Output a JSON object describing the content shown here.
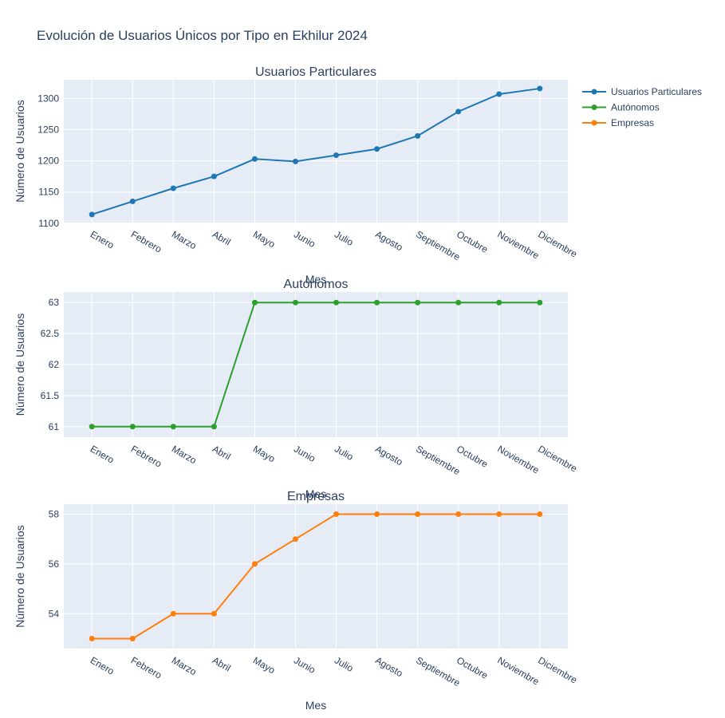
{
  "chart_data": {
    "type": "line",
    "title": "Evolución de Usuarios Únicos por Tipo en Ekhilur 2024",
    "categories": [
      "Enero",
      "Febrero",
      "Marzo",
      "Abril",
      "Mayo",
      "Junio",
      "Julio",
      "Agosto",
      "Septiembre",
      "Octubre",
      "Noviembre",
      "Diciembre"
    ],
    "legend": {
      "placement": "top-right",
      "entries": [
        "Usuarios Particulares",
        "Autónomos",
        "Empresas"
      ]
    },
    "subplots": [
      {
        "title": "Usuarios Particulares",
        "series_name": "Usuarios Particulares",
        "color": "#1f77b4",
        "values": [
          1114,
          1135,
          1156,
          1175,
          1203,
          1199,
          1209,
          1219,
          1240,
          1279,
          1307,
          1316
        ],
        "ylim": [
          1101,
          1330
        ],
        "yticks": [
          1100,
          1150,
          1200,
          1250,
          1300
        ],
        "ytick_labels": [
          "1100",
          "1150",
          "1200",
          "1250",
          "1300"
        ],
        "xlabel": "Mes",
        "ylabel": "Número de Usuarios"
      },
      {
        "title": "Autónomos",
        "series_name": "Autónomos",
        "color": "#2ca02c",
        "values": [
          61,
          61,
          61,
          61,
          63,
          63,
          63,
          63,
          63,
          63,
          63,
          63
        ],
        "ylim": [
          60.83,
          63.17
        ],
        "yticks": [
          61,
          61.5,
          62,
          62.5,
          63
        ],
        "ytick_labels": [
          "61",
          "61.5",
          "62",
          "62.5",
          "63"
        ],
        "xlabel": "Mes",
        "ylabel": "Número de Usuarios"
      },
      {
        "title": "Empresas",
        "series_name": "Empresas",
        "color": "#ff7f0e",
        "values": [
          53,
          53,
          54,
          54,
          56,
          57,
          58,
          58,
          58,
          58,
          58,
          58
        ],
        "ylim": [
          52.6,
          58.4
        ],
        "yticks": [
          54,
          56,
          58
        ],
        "ytick_labels": [
          "54",
          "56",
          "58"
        ],
        "xlabel": "Mes",
        "ylabel": "Número de Usuarios"
      }
    ],
    "grid": true
  }
}
